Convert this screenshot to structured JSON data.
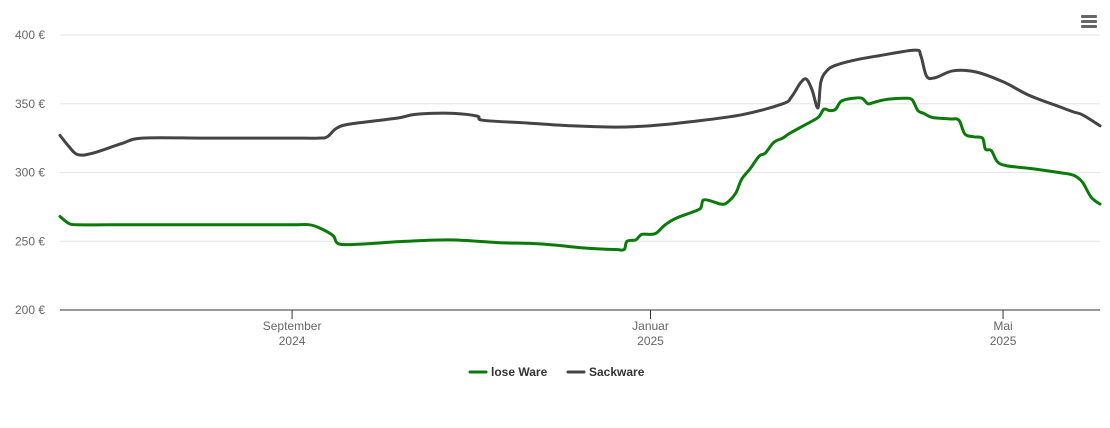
{
  "menu": {
    "icon": "hamburger-menu-icon"
  },
  "chart_data": {
    "type": "line",
    "title": "",
    "xlabel": "",
    "ylabel": "",
    "x_range": [
      "2024-06-14",
      "2025-06-03"
    ],
    "ylim": [
      200,
      400
    ],
    "y_ticks": [
      200,
      250,
      300,
      350,
      400
    ],
    "y_unit_suffix": " €",
    "grid": true,
    "legend_position": "bottom-center",
    "x_ticks": [
      {
        "date": "2024-09-01",
        "label": "September",
        "sublabel": "2024"
      },
      {
        "date": "2025-01-01",
        "label": "Januar",
        "sublabel": "2025"
      },
      {
        "date": "2025-05-01",
        "label": "Mai",
        "sublabel": "2025"
      }
    ],
    "series": [
      {
        "name": "lose Ware",
        "color": "#0a7a0a",
        "points": [
          [
            "2024-06-14",
            268
          ],
          [
            "2024-06-17",
            263
          ],
          [
            "2024-06-20",
            262
          ],
          [
            "2024-07-01",
            262
          ],
          [
            "2024-07-15",
            262
          ],
          [
            "2024-08-01",
            262
          ],
          [
            "2024-08-15",
            262
          ],
          [
            "2024-09-01",
            262
          ],
          [
            "2024-09-07",
            262
          ],
          [
            "2024-09-11",
            259
          ],
          [
            "2024-09-15",
            254
          ],
          [
            "2024-09-17",
            248
          ],
          [
            "2024-09-25",
            248
          ],
          [
            "2024-10-10",
            250
          ],
          [
            "2024-10-25",
            251
          ],
          [
            "2024-11-10",
            249
          ],
          [
            "2024-11-25",
            248
          ],
          [
            "2024-12-10",
            245
          ],
          [
            "2024-12-20",
            244
          ],
          [
            "2024-12-23",
            244
          ],
          [
            "2024-12-24",
            250
          ],
          [
            "2024-12-27",
            251
          ],
          [
            "2024-12-29",
            255
          ],
          [
            "2025-01-01",
            255
          ],
          [
            "2025-01-03",
            256
          ],
          [
            "2025-01-06",
            262
          ],
          [
            "2025-01-10",
            267
          ],
          [
            "2025-01-15",
            271
          ],
          [
            "2025-01-18",
            274
          ],
          [
            "2025-01-19",
            280
          ],
          [
            "2025-01-22",
            279
          ],
          [
            "2025-01-25",
            277
          ],
          [
            "2025-01-27",
            278
          ],
          [
            "2025-01-30",
            285
          ],
          [
            "2025-02-01",
            295
          ],
          [
            "2025-02-04",
            303
          ],
          [
            "2025-02-07",
            312
          ],
          [
            "2025-02-09",
            314
          ],
          [
            "2025-02-12",
            322
          ],
          [
            "2025-02-15",
            325
          ],
          [
            "2025-02-17",
            328
          ],
          [
            "2025-02-22",
            334
          ],
          [
            "2025-02-27",
            340
          ],
          [
            "2025-03-01",
            346
          ],
          [
            "2025-03-03",
            345
          ],
          [
            "2025-03-05",
            346
          ],
          [
            "2025-03-07",
            352
          ],
          [
            "2025-03-11",
            354
          ],
          [
            "2025-03-14",
            354
          ],
          [
            "2025-03-16",
            350
          ],
          [
            "2025-03-18",
            351
          ],
          [
            "2025-03-22",
            353
          ],
          [
            "2025-03-28",
            354
          ],
          [
            "2025-03-31",
            353
          ],
          [
            "2025-04-02",
            345
          ],
          [
            "2025-04-04",
            343
          ],
          [
            "2025-04-07",
            340
          ],
          [
            "2025-04-13",
            339
          ],
          [
            "2025-04-16",
            338
          ],
          [
            "2025-04-18",
            328
          ],
          [
            "2025-04-21",
            326
          ],
          [
            "2025-04-24",
            325
          ],
          [
            "2025-04-25",
            317
          ],
          [
            "2025-04-27",
            316
          ],
          [
            "2025-04-29",
            308
          ],
          [
            "2025-05-02",
            305
          ],
          [
            "2025-05-10",
            303
          ],
          [
            "2025-05-20",
            300
          ],
          [
            "2025-05-25",
            298
          ],
          [
            "2025-05-28",
            293
          ],
          [
            "2025-05-31",
            282
          ],
          [
            "2025-06-03",
            277
          ]
        ]
      },
      {
        "name": "Sackware",
        "color": "#444444",
        "points": [
          [
            "2024-06-14",
            327
          ],
          [
            "2024-06-17",
            319
          ],
          [
            "2024-06-20",
            313
          ],
          [
            "2024-06-25",
            314
          ],
          [
            "2024-07-05",
            321
          ],
          [
            "2024-07-12",
            325
          ],
          [
            "2024-08-01",
            325
          ],
          [
            "2024-08-15",
            325
          ],
          [
            "2024-09-01",
            325
          ],
          [
            "2024-09-10",
            325
          ],
          [
            "2024-09-13",
            326
          ],
          [
            "2024-09-16",
            332
          ],
          [
            "2024-09-20",
            335
          ],
          [
            "2024-10-01",
            338
          ],
          [
            "2024-10-08",
            340
          ],
          [
            "2024-10-12",
            342
          ],
          [
            "2024-10-18",
            343
          ],
          [
            "2024-10-26",
            343
          ],
          [
            "2024-11-03",
            341
          ],
          [
            "2024-11-05",
            338
          ],
          [
            "2024-11-20",
            336
          ],
          [
            "2024-12-05",
            334
          ],
          [
            "2024-12-20",
            333
          ],
          [
            "2025-01-01",
            334
          ],
          [
            "2025-01-15",
            337
          ],
          [
            "2025-02-01",
            342
          ],
          [
            "2025-02-15",
            350
          ],
          [
            "2025-02-18",
            355
          ],
          [
            "2025-02-21",
            365
          ],
          [
            "2025-02-23",
            368
          ],
          [
            "2025-02-25",
            360
          ],
          [
            "2025-02-27",
            347
          ],
          [
            "2025-02-28",
            366
          ],
          [
            "2025-03-02",
            374
          ],
          [
            "2025-03-05",
            378
          ],
          [
            "2025-03-12",
            382
          ],
          [
            "2025-03-20",
            385
          ],
          [
            "2025-04-01",
            389
          ],
          [
            "2025-04-03",
            385
          ],
          [
            "2025-04-05",
            370
          ],
          [
            "2025-04-08",
            369
          ],
          [
            "2025-04-14",
            374
          ],
          [
            "2025-04-22",
            373
          ],
          [
            "2025-05-01",
            366
          ],
          [
            "2025-05-10",
            356
          ],
          [
            "2025-05-20",
            348
          ],
          [
            "2025-05-25",
            344
          ],
          [
            "2025-05-28",
            342
          ],
          [
            "2025-06-03",
            334
          ]
        ]
      }
    ]
  }
}
